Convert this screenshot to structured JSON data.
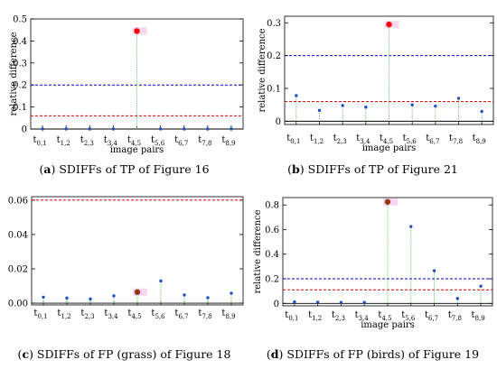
{
  "chart_data": [
    {
      "type": "scatter",
      "categories": [
        {
          "base": "t",
          "sub": "0,1"
        },
        {
          "base": "t",
          "sub": "1,2"
        },
        {
          "base": "t",
          "sub": "2,3"
        },
        {
          "base": "t",
          "sub": "3,4"
        },
        {
          "base": "t",
          "sub": "4,5"
        },
        {
          "base": "t",
          "sub": "5,6"
        },
        {
          "base": "t",
          "sub": "6,7"
        },
        {
          "base": "t",
          "sub": "7,8"
        },
        {
          "base": "t",
          "sub": "8,9"
        }
      ],
      "values": [
        0.0,
        0.0,
        0.0,
        0.0,
        0.445,
        0.0,
        0.0,
        0.0,
        0.0
      ],
      "highlight_index": 4,
      "highlight_color": "#ff0000",
      "point_color": "#1f4fbf",
      "ylim": [
        0,
        0.5
      ],
      "yticks": [
        "0",
        "0.1",
        "0.2",
        "0.3",
        "0.4",
        "0.5"
      ],
      "ytick_values": [
        0,
        0.1,
        0.2,
        0.3,
        0.4,
        0.5
      ],
      "hlines": [
        {
          "value": 0.2,
          "color": "#0000c8"
        },
        {
          "value": 0.06,
          "color": "#e00000"
        }
      ],
      "xlabel": "image pairs",
      "ylabel": "relative difference",
      "caption_label": "a",
      "caption_text": "SDIFFs of TP of Figure 16"
    },
    {
      "type": "scatter",
      "categories": [
        {
          "base": "t",
          "sub": "0,1"
        },
        {
          "base": "t",
          "sub": "1,2"
        },
        {
          "base": "t",
          "sub": "2,3"
        },
        {
          "base": "t",
          "sub": "3,4"
        },
        {
          "base": "t",
          "sub": "4,5"
        },
        {
          "base": "t",
          "sub": "5,6"
        },
        {
          "base": "t",
          "sub": "6,7"
        },
        {
          "base": "t",
          "sub": "7,8"
        },
        {
          "base": "t",
          "sub": "8,9"
        }
      ],
      "values": [
        0.078,
        0.033,
        0.048,
        0.043,
        0.295,
        0.05,
        0.046,
        0.07,
        0.03
      ],
      "highlight_index": 4,
      "highlight_color": "#ff0000",
      "point_color": "#1f4fbf",
      "ylim": [
        -0.01,
        0.32
      ],
      "yticks": [
        "0",
        "0.1",
        "0.2",
        "0.3"
      ],
      "ytick_values": [
        0,
        0.1,
        0.2,
        0.3
      ],
      "hlines": [
        {
          "value": 0.2,
          "color": "#0000c8"
        },
        {
          "value": 0.06,
          "color": "#e00000"
        }
      ],
      "xlabel": "image pairs",
      "ylabel": "relative difference",
      "caption_label": "b",
      "caption_text": "SDIFFs of TP of Figure 21"
    },
    {
      "type": "scatter",
      "categories": [
        {
          "base": "t",
          "sub": "0,1"
        },
        {
          "base": "t",
          "sub": "1,2"
        },
        {
          "base": "t",
          "sub": "2,3"
        },
        {
          "base": "t",
          "sub": "3,4"
        },
        {
          "base": "t",
          "sub": "4,5"
        },
        {
          "base": "t",
          "sub": "5,6"
        },
        {
          "base": "t",
          "sub": "6,7"
        },
        {
          "base": "t",
          "sub": "7,8"
        },
        {
          "base": "t",
          "sub": "8,9"
        }
      ],
      "values": [
        0.0035,
        0.003,
        0.0025,
        0.0043,
        0.0065,
        0.013,
        0.0048,
        0.0032,
        0.0058
      ],
      "highlight_index": 4,
      "highlight_color": "#8b3a12",
      "point_color": "#1f4fbf",
      "ylim": [
        -0.001,
        0.062
      ],
      "yticks": [
        "0.00",
        "0.02",
        "0.04",
        "0.06"
      ],
      "ytick_values": [
        0,
        0.02,
        0.04,
        0.06
      ],
      "hlines": [
        {
          "value": 0.06,
          "color": "#e00000"
        }
      ],
      "xlabel": "",
      "ylabel": "",
      "caption_label": "c",
      "caption_text": "SDIFFs of FP (grass) of Figure 18"
    },
    {
      "type": "scatter",
      "categories": [
        {
          "base": "t",
          "sub": "0,1"
        },
        {
          "base": "t",
          "sub": "1,2"
        },
        {
          "base": "t",
          "sub": "2,3"
        },
        {
          "base": "t",
          "sub": "3,4"
        },
        {
          "base": "t",
          "sub": "4,5"
        },
        {
          "base": "t",
          "sub": "5,6"
        },
        {
          "base": "t",
          "sub": "6,7"
        },
        {
          "base": "t",
          "sub": "7,8"
        },
        {
          "base": "t",
          "sub": "8,9"
        }
      ],
      "values": [
        0.012,
        0.01,
        0.008,
        0.008,
        0.825,
        0.625,
        0.265,
        0.04,
        0.14
      ],
      "highlight_index": 4,
      "highlight_color": "#8b3a12",
      "point_color": "#1f4fbf",
      "ylim": [
        -0.02,
        0.86
      ],
      "yticks": [
        "0",
        "0.2",
        "0.4",
        "0.6",
        "0.8"
      ],
      "ytick_values": [
        0,
        0.2,
        0.4,
        0.6,
        0.8
      ],
      "hlines": [
        {
          "value": 0.2,
          "color": "#0000c8"
        },
        {
          "value": 0.11,
          "color": "#e00000"
        }
      ],
      "xlabel": "image pairs",
      "ylabel": "relative difference",
      "caption_label": "d",
      "caption_text": "SDIFFs of FP (birds) of Figure 19"
    }
  ]
}
